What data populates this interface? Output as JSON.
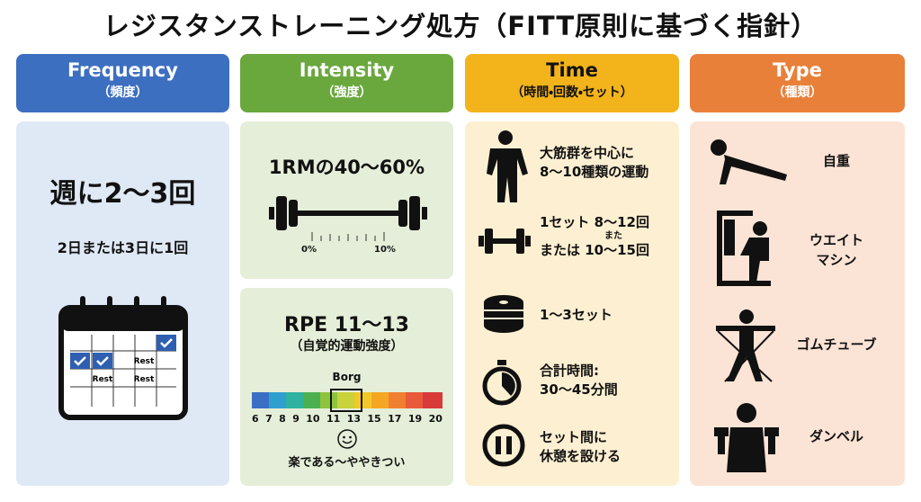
{
  "title": "レジスタンストレーニング処方（FITT原則に基づく指針）",
  "frequency": {
    "header": "Frequency",
    "subheader": "（頻度）",
    "main": "週に2〜3回",
    "sub": "2日または3日に1回",
    "calendar_labels": [
      "Rest",
      "Rest",
      "Rest"
    ]
  },
  "intensity": {
    "header": "Intensity",
    "subheader": "（強度）",
    "load": {
      "text": "1RMの40〜60%",
      "scale_labels": [
        "0%",
        "10%"
      ]
    },
    "rpe": {
      "title": "RPE 11〜13",
      "subtitle": "（自覚的運動強度）",
      "scale_title": "Borg",
      "scale_numbers": [
        "6",
        "7",
        "8",
        "9",
        "10",
        "11",
        "13",
        "15",
        "17",
        "19",
        "20"
      ],
      "footer": "楽である〜ややきつい"
    }
  },
  "time": {
    "header": "Time",
    "subheader": "（時間・回数・セット）",
    "items": [
      [
        "大筋群を中心に",
        "8〜10種類の運動"
      ],
      [
        "1セット 8〜12回",
        "また",
        "または 10〜15回"
      ],
      [
        "1〜3セット"
      ],
      [
        "合計時間:",
        "30〜45分間"
      ],
      [
        "セット間に",
        "休憩を設ける"
      ]
    ]
  },
  "type": {
    "header": "Type",
    "subheader": "（種類）",
    "items": [
      [
        "自重"
      ],
      [
        "ウエイト",
        "マシン"
      ],
      [
        "ゴムチューブ"
      ],
      [
        "ダンベル"
      ]
    ]
  }
}
